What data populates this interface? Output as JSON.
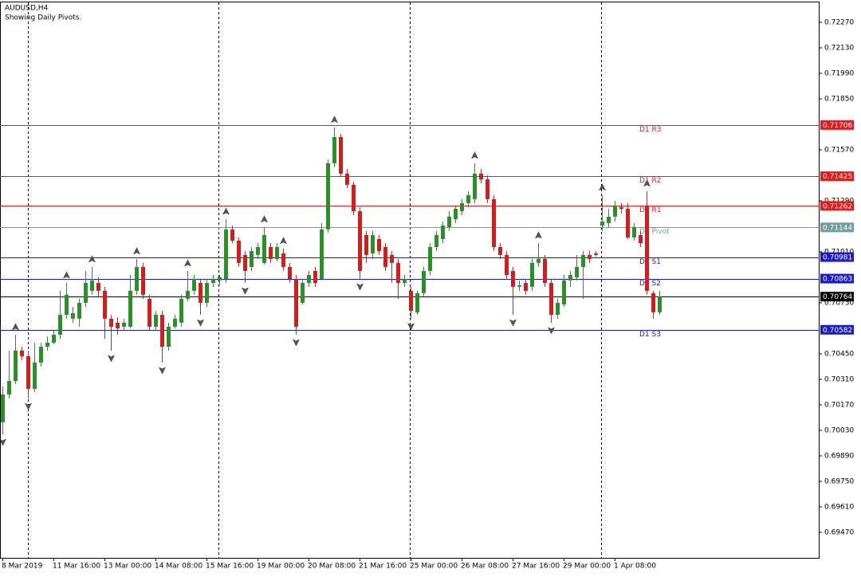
{
  "chart_data": {
    "type": "candlestick",
    "title": "AUDUSD,H4",
    "subtitle": "Showing Daily Pivots.",
    "up_color": "#1a9a1a",
    "down_color": "#ee1111",
    "categories": [
      "8 Mar 2019",
      null,
      null,
      null,
      null,
      null,
      null,
      null,
      "11 Mar 16:00",
      null,
      null,
      null,
      null,
      null,
      null,
      null,
      "13 Mar 00:00",
      null,
      null,
      null,
      null,
      null,
      null,
      null,
      "14 Mar 08:00",
      null,
      null,
      null,
      null,
      null,
      null,
      null,
      "15 Mar 16:00",
      null,
      null,
      null,
      null,
      null,
      null,
      null,
      "19 Mar 00:00",
      null,
      null,
      null,
      null,
      null,
      null,
      null,
      "20 Mar 08:00",
      null,
      null,
      null,
      null,
      null,
      null,
      null,
      "21 Mar 16:00",
      null,
      null,
      null,
      null,
      null,
      null,
      null,
      "25 Mar 00:00",
      null,
      null,
      null,
      null,
      null,
      null,
      null,
      "26 Mar 08:00",
      null,
      null,
      null,
      null,
      null,
      null,
      null,
      "27 Mar 16:00",
      null,
      null,
      null,
      null,
      null,
      null,
      null,
      "29 Mar 00:00",
      null,
      null,
      null,
      null,
      null,
      null,
      null,
      "1 Apr 08:00",
      null,
      null,
      null,
      null,
      null,
      null,
      null
    ],
    "open": [
      0.70074,
      0.70227,
      0.70301,
      0.70468,
      0.70437,
      0.70258,
      0.70402,
      0.70489,
      0.70511,
      0.70555,
      0.70664,
      0.70643,
      0.70643,
      0.7073,
      0.70796,
      0.70839,
      0.70796,
      0.70643,
      0.70621,
      0.70599,
      0.70599,
      0.70796,
      0.70927,
      0.70752,
      0.70599,
      0.70664,
      0.70489,
      0.70599,
      0.70621,
      0.70752,
      0.70796,
      0.70839,
      0.7073,
      0.70839,
      0.70853,
      0.70861,
      0.71133,
      0.71071,
      0.70993,
      0.70927,
      0.70993,
      0.70949,
      0.71036,
      0.70971,
      0.71001,
      0.70927,
      0.70861,
      0.7073,
      0.70839,
      0.70905,
      0.70861,
      0.71133,
      0.71496,
      0.7164,
      0.71439,
      0.71378,
      0.71233,
      0.71102,
      0.71001,
      0.7108,
      0.71036,
      0.70993,
      0.70949,
      0.70839,
      0.70796,
      0.70678,
      0.70783,
      0.70905,
      0.71036,
      0.7108,
      0.71146,
      0.71189,
      0.71233,
      0.71277,
      0.71299,
      0.71439,
      0.71408,
      0.71299,
      0.71036,
      0.70993,
      0.70905,
      0.70818,
      0.70839,
      0.70818,
      0.70949,
      0.70971,
      0.70839,
      0.70664,
      0.70721,
      0.70853,
      0.7087,
      0.70927,
      0.70993,
      0.71001,
      0.71154,
      0.71168,
      0.71203,
      0.71255,
      0.71246,
      0.71089,
      0.71102,
      0.71264,
      0.70783,
      0.70678
    ],
    "high": [
      0.70271,
      0.70468,
      0.70555,
      0.70489,
      0.70468,
      0.70511,
      0.70511,
      0.70546,
      0.70577,
      0.70796,
      0.70839,
      0.70708,
      0.70752,
      0.70905,
      0.70927,
      0.7087,
      0.70818,
      0.70664,
      0.70651,
      0.70643,
      0.70883,
      0.70971,
      0.70949,
      0.70774,
      0.70686,
      0.70686,
      0.70621,
      0.70664,
      0.70774,
      0.70905,
      0.70883,
      0.70861,
      0.70861,
      0.70883,
      0.70883,
      0.71189,
      0.71154,
      0.71089,
      0.71014,
      0.71036,
      0.71058,
      0.71146,
      0.71058,
      0.71058,
      0.71028,
      0.70949,
      0.70883,
      0.70861,
      0.70905,
      0.70927,
      0.71168,
      0.71518,
      0.71693,
      0.71658,
      0.71465,
      0.71395,
      0.71255,
      0.71124,
      0.71124,
      0.71102,
      0.71058,
      0.71014,
      0.70971,
      0.70883,
      0.70818,
      0.70796,
      0.70927,
      0.71058,
      0.71124,
      0.71176,
      0.71233,
      0.71264,
      0.71299,
      0.71343,
      0.71496,
      0.71465,
      0.7143,
      0.71321,
      0.71058,
      0.71014,
      0.70927,
      0.70853,
      0.70861,
      0.70971,
      0.71058,
      0.70993,
      0.70861,
      0.70752,
      0.70883,
      0.70905,
      0.70993,
      0.71014,
      0.71014,
      0.71014,
      0.71321,
      0.71246,
      0.7129,
      0.71277,
      0.71277,
      0.71168,
      0.71124,
      0.71343,
      0.70796,
      0.70796
    ],
    "low": [
      0.70008,
      0.70205,
      0.70284,
      0.70415,
      0.70205,
      0.7024,
      0.7038,
      0.70468,
      0.70503,
      0.70533,
      0.70643,
      0.70621,
      0.70599,
      0.70708,
      0.70774,
      0.70765,
      0.70533,
      0.70468,
      0.70555,
      0.70577,
      0.7059,
      0.70774,
      0.70752,
      0.70577,
      0.70577,
      0.70402,
      0.70468,
      0.7059,
      0.70599,
      0.70739,
      0.70774,
      0.70664,
      0.70708,
      0.70818,
      0.70826,
      0.70839,
      0.71058,
      0.70927,
      0.70839,
      0.70905,
      0.70971,
      0.7094,
      0.70949,
      0.70958,
      0.70905,
      0.70839,
      0.70555,
      0.70721,
      0.70818,
      0.70818,
      0.70853,
      0.71115,
      0.71474,
      0.71421,
      0.7136,
      0.71211,
      0.70861,
      0.70949,
      0.70971,
      0.70993,
      0.70905,
      0.70839,
      0.70752,
      0.70818,
      0.70643,
      0.70664,
      0.70765,
      0.70883,
      0.71014,
      0.71058,
      0.71124,
      0.71168,
      0.71211,
      0.71255,
      0.71277,
      0.71386,
      0.71277,
      0.71014,
      0.70971,
      0.70861,
      0.70664,
      0.70796,
      0.70774,
      0.70796,
      0.70927,
      0.70818,
      0.70621,
      0.70643,
      0.70708,
      0.70818,
      0.70853,
      0.70752,
      0.70949,
      0.70984,
      0.71124,
      0.71146,
      0.71176,
      0.7122,
      0.7108,
      0.71071,
      0.71036,
      0.70774,
      0.70643,
      0.70664
    ],
    "close": [
      0.70227,
      0.70301,
      0.70468,
      0.70437,
      0.70258,
      0.70402,
      0.70489,
      0.70511,
      0.70555,
      0.70664,
      0.70774,
      0.70673,
      0.7073,
      0.70839,
      0.70853,
      0.70796,
      0.70643,
      0.70599,
      0.7059,
      0.70621,
      0.70796,
      0.70927,
      0.70774,
      0.70599,
      0.70664,
      0.70489,
      0.70599,
      0.70643,
      0.70752,
      0.70796,
      0.70861,
      0.7073,
      0.70839,
      0.70861,
      0.7087,
      0.71133,
      0.71071,
      0.70949,
      0.70905,
      0.71014,
      0.71036,
      0.71102,
      0.70971,
      0.71036,
      0.70927,
      0.70861,
      0.70599,
      0.70839,
      0.70883,
      0.70839,
      0.71133,
      0.71496,
      0.7164,
      0.71439,
      0.71378,
      0.71233,
      0.70905,
      0.70993,
      0.71102,
      0.71014,
      0.70927,
      0.70949,
      0.70839,
      0.70861,
      0.70686,
      0.70783,
      0.70905,
      0.71036,
      0.71102,
      0.71154,
      0.71203,
      0.71246,
      0.71277,
      0.71321,
      0.71439,
      0.71408,
      0.71299,
      0.71036,
      0.70993,
      0.70883,
      0.70818,
      0.70826,
      0.70796,
      0.70949,
      0.70971,
      0.70839,
      0.70664,
      0.7073,
      0.70853,
      0.70883,
      0.70927,
      0.70993,
      0.70971,
      0.70993,
      0.71176,
      0.71203,
      0.71264,
      0.71246,
      0.71089,
      0.71146,
      0.71058,
      0.70796,
      0.70678,
      0.70764
    ],
    "fractals_up": [
      2,
      10,
      14,
      21,
      29,
      35,
      41,
      44,
      52,
      74,
      84,
      94,
      101
    ],
    "fractals_down": [
      0,
      4,
      17,
      25,
      31,
      38,
      46,
      56,
      64,
      80,
      86
    ],
    "ylim": [
      0.6933,
      0.72379
    ],
    "yticks": [
      {
        "value": 0.7227,
        "label": "0.72270"
      },
      {
        "value": 0.7213,
        "label": "0.72130"
      },
      {
        "value": 0.7199,
        "label": "0.71990"
      },
      {
        "value": 0.7185,
        "label": "0.71850"
      },
      {
        "value": 0.7157,
        "label": "0.71570"
      },
      {
        "value": 0.7129,
        "label": "0.71290"
      },
      {
        "value": 0.7101,
        "label": "0.71010"
      },
      {
        "value": 0.7073,
        "label": "0.70730"
      },
      {
        "value": 0.7045,
        "label": "0.70450"
      },
      {
        "value": 0.7031,
        "label": "0.70310"
      },
      {
        "value": 0.7017,
        "label": "0.70170"
      },
      {
        "value": 0.7003,
        "label": "0.70030"
      },
      {
        "value": 0.6989,
        "label": "0.69890"
      },
      {
        "value": 0.6975,
        "label": "0.69750"
      },
      {
        "value": 0.6961,
        "label": "0.69610"
      },
      {
        "value": 0.6947,
        "label": "0.69470"
      }
    ],
    "pivots": [
      {
        "name": "D1 R3",
        "value": 0.71706,
        "color": "#e61a1a"
      },
      {
        "name": "D1 R2",
        "value": 0.71425,
        "color": "#e61a1a"
      },
      {
        "name": "D1 R1",
        "value": 0.71262,
        "color": "#e61a1a"
      },
      {
        "name": "D1 Pivot",
        "value": 0.71144,
        "color": "#6e9e9e"
      },
      {
        "name": "D1 S1",
        "value": 0.70981,
        "color": "#1a1acc"
      },
      {
        "name": "D1 S2",
        "value": 0.70863,
        "color": "#1a1acc"
      },
      {
        "name": "D1 S3",
        "value": 0.70582,
        "color": "#1a1acc"
      }
    ],
    "current_price": 0.70764,
    "current_color": "#000000"
  }
}
